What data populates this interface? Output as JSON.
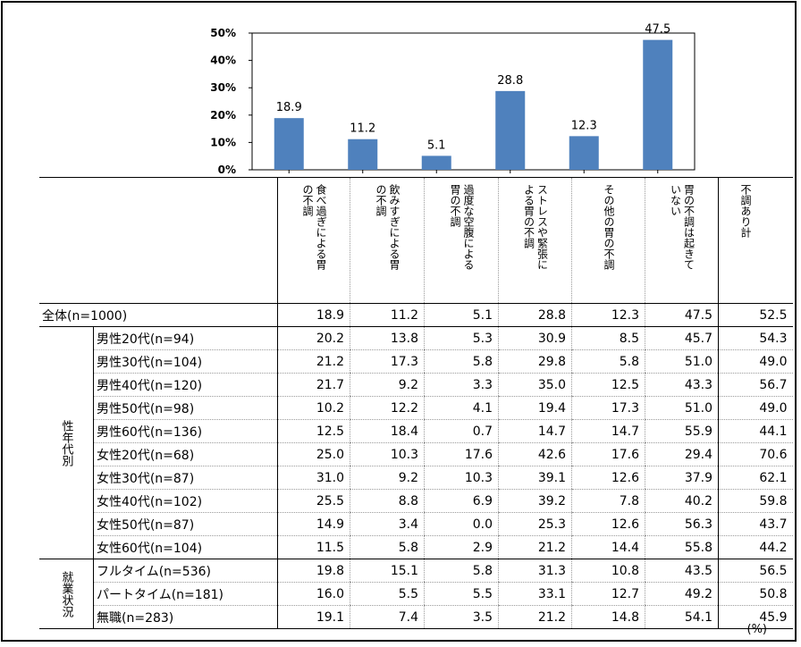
{
  "chart_data": {
    "type": "bar",
    "categories": [
      "食べ過ぎによる胃の不調",
      "飲みすぎによる胃の不調",
      "過度な空腹による胃の不調",
      "ストレスや緊張による胃の不調",
      "その他の胃の不調",
      "胃の不調は起きていない"
    ],
    "values": [
      18.9,
      11.2,
      5.1,
      28.8,
      12.3,
      47.5
    ],
    "data_labels": [
      "18.9",
      "11.2",
      "5.1",
      "28.8",
      "12.3",
      "47.5"
    ],
    "yticks": [
      "0%",
      "10%",
      "20%",
      "30%",
      "40%",
      "50%"
    ],
    "ylim": [
      0,
      50
    ],
    "bar_color": "#4f81bd",
    "grid": false,
    "legend": "none"
  },
  "table": {
    "column_headers": [
      "食べ過ぎによる胃\nの不調",
      "飲みすぎによる胃\nの不調",
      "過度な空腹による\n胃の不調",
      "ストレスや緊張に\nよる胃の不調",
      "その他の胃の不調",
      "胃の不調は起きて\nいない",
      "不調あり計"
    ],
    "total_row": {
      "label": "全体(n=1000)",
      "values": [
        "18.9",
        "11.2",
        "5.1",
        "28.8",
        "12.3",
        "47.5",
        "52.5"
      ]
    },
    "groups": [
      {
        "label": "性年代別",
        "rows": [
          {
            "label": "男性20代(n=94)",
            "values": [
              "20.2",
              "13.8",
              "5.3",
              "30.9",
              "8.5",
              "45.7",
              "54.3"
            ]
          },
          {
            "label": "男性30代(n=104)",
            "values": [
              "21.2",
              "17.3",
              "5.8",
              "29.8",
              "5.8",
              "51.0",
              "49.0"
            ]
          },
          {
            "label": "男性40代(n=120)",
            "values": [
              "21.7",
              "9.2",
              "3.3",
              "35.0",
              "12.5",
              "43.3",
              "56.7"
            ]
          },
          {
            "label": "男性50代(n=98)",
            "values": [
              "10.2",
              "12.2",
              "4.1",
              "19.4",
              "17.3",
              "51.0",
              "49.0"
            ]
          },
          {
            "label": "男性60代(n=136)",
            "values": [
              "12.5",
              "18.4",
              "0.7",
              "14.7",
              "14.7",
              "55.9",
              "44.1"
            ]
          },
          {
            "label": "女性20代(n=68)",
            "values": [
              "25.0",
              "10.3",
              "17.6",
              "42.6",
              "17.6",
              "29.4",
              "70.6"
            ]
          },
          {
            "label": "女性30代(n=87)",
            "values": [
              "31.0",
              "9.2",
              "10.3",
              "39.1",
              "12.6",
              "37.9",
              "62.1"
            ]
          },
          {
            "label": "女性40代(n=102)",
            "values": [
              "25.5",
              "8.8",
              "6.9",
              "39.2",
              "7.8",
              "40.2",
              "59.8"
            ]
          },
          {
            "label": "女性50代(n=87)",
            "values": [
              "14.9",
              "3.4",
              "0.0",
              "25.3",
              "12.6",
              "56.3",
              "43.7"
            ]
          },
          {
            "label": "女性60代(n=104)",
            "values": [
              "11.5",
              "5.8",
              "2.9",
              "21.2",
              "14.4",
              "55.8",
              "44.2"
            ]
          }
        ]
      },
      {
        "label": "就業状況",
        "rows": [
          {
            "label": "フルタイム(n=536)",
            "values": [
              "19.8",
              "15.1",
              "5.8",
              "31.3",
              "10.8",
              "43.5",
              "56.5"
            ]
          },
          {
            "label": "パートタイム(n=181)",
            "values": [
              "16.0",
              "5.5",
              "5.5",
              "33.1",
              "12.7",
              "49.2",
              "50.8"
            ]
          },
          {
            "label": "無職(n=283)",
            "values": [
              "19.1",
              "7.4",
              "3.5",
              "21.2",
              "14.8",
              "54.1",
              "45.9"
            ]
          }
        ]
      }
    ],
    "unit": "(%)"
  }
}
